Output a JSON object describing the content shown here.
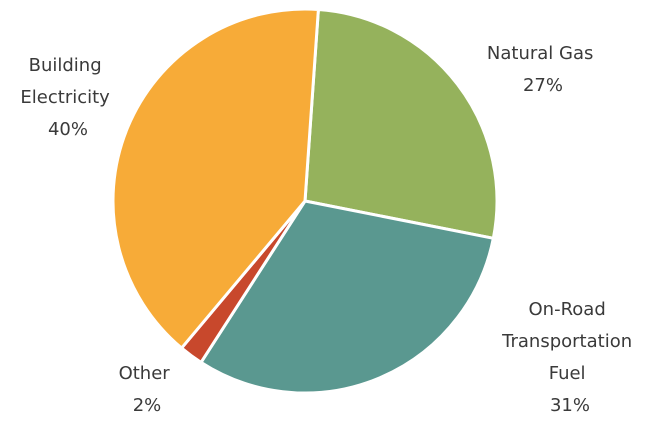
{
  "chart_data": {
    "type": "pie",
    "slices": [
      {
        "label": "Natural Gas",
        "label_lines": [
          "Natural Gas"
        ],
        "pct_label": "27%",
        "value": 27,
        "color": "#95b25c"
      },
      {
        "label": "On-Road Transportation Fuel",
        "label_lines": [
          "On-Road",
          "Transportation",
          "Fuel"
        ],
        "pct_label": "31%",
        "value": 31,
        "color": "#5a9890"
      },
      {
        "label": "Other",
        "label_lines": [
          "Other"
        ],
        "pct_label": "2%",
        "value": 2,
        "color": "#c8482c"
      },
      {
        "label": "Building Electricity",
        "label_lines": [
          "Building",
          "Electricity"
        ],
        "pct_label": "40%",
        "value": 40,
        "color": "#f7ab38"
      }
    ],
    "start_angle_deg": 4,
    "direction": "clockwise"
  }
}
